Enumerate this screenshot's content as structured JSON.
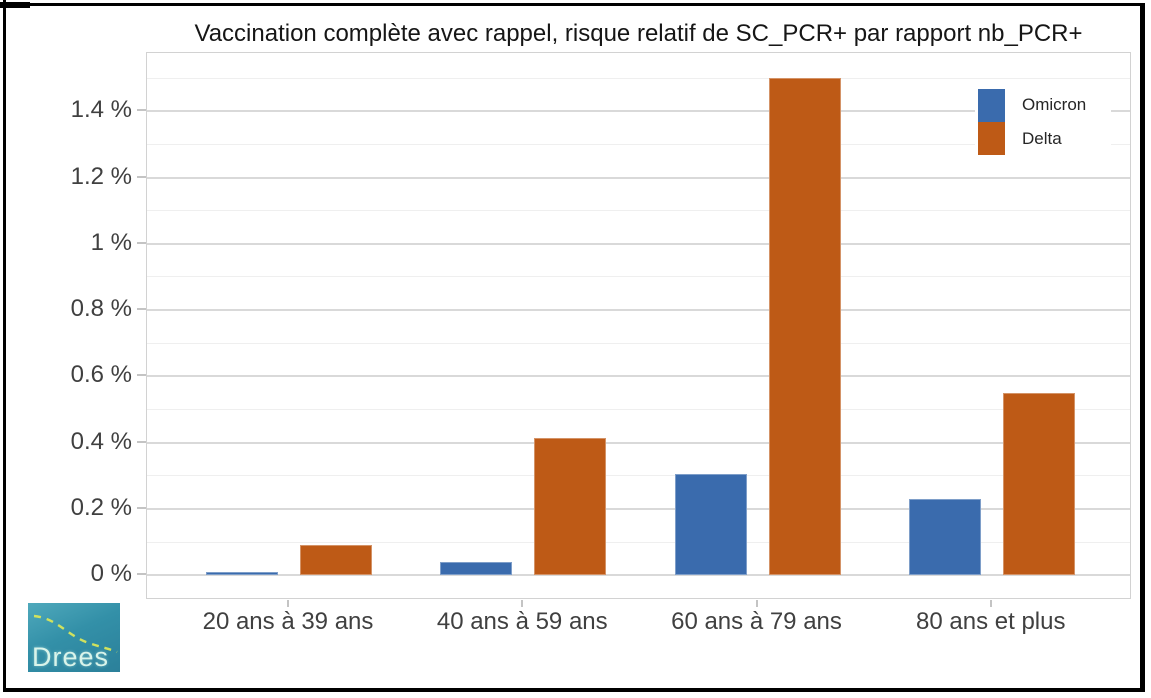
{
  "chart_data": {
    "type": "bar",
    "title": "Vaccination complète avec rappel, risque relatif de SC_PCR+ par rapport nb_PCR+",
    "categories": [
      "20 ans à 39 ans",
      "40 ans à 59 ans",
      "60 ans à 79 ans",
      "80 ans et plus"
    ],
    "series": [
      {
        "name": "Omicron",
        "color": "#3A6BAD",
        "values": [
          0.01,
          0.04,
          0.305,
          0.23
        ]
      },
      {
        "name": "Delta",
        "color": "#BE5A16",
        "values": [
          0.09,
          0.415,
          1.5,
          0.55
        ]
      }
    ],
    "unit": "%",
    "yticks": [
      0,
      0.2,
      0.4,
      0.6,
      0.8,
      1,
      1.2,
      1.4
    ],
    "ytick_labels": [
      "0 %",
      "0.2 %",
      "0.4 %",
      "0.6 %",
      "0.8 %",
      "1 %",
      "1.2 %",
      "1.4 %"
    ],
    "minor_yticks": [
      0.1,
      0.3,
      0.5,
      0.7,
      0.9,
      1.1,
      1.3,
      1.5
    ],
    "ylim": [
      -0.08,
      1.58
    ],
    "xlabel": "",
    "ylabel": "",
    "grid": true,
    "legend_position": "top-right"
  },
  "legend": {
    "items": [
      "Omicron",
      "Delta"
    ]
  },
  "logo": {
    "text": "Drees"
  },
  "colors": {
    "omicron_blue": "#3A6BAD",
    "delta_orange": "#BE5A16",
    "grid_major": "#d9d9d9",
    "grid_minor": "#efefef",
    "axis_text": "#404040",
    "title_text": "#161616",
    "frame_black": "#000000",
    "logo_teal": "#3390a8",
    "logo_dash_green": "#d9e65a"
  }
}
